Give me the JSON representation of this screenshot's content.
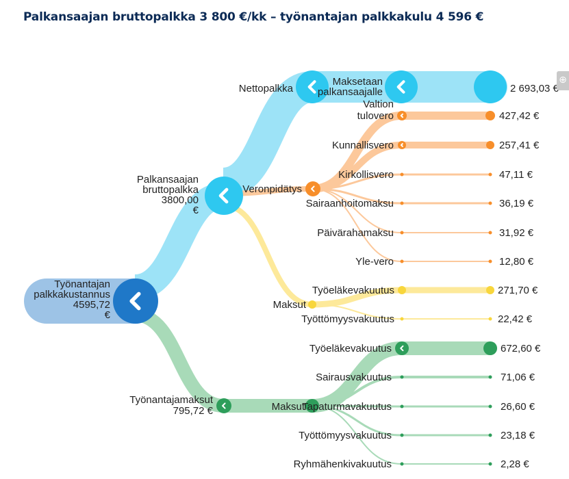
{
  "title": "Palkansaajan bruttopalkka 3 800 €/kk – työnantajan palkkakulu 4 596 €",
  "colors": {
    "employer_band": "#9dc3e6",
    "employer_node": "#1f78c8",
    "net_band": "#9de3f7",
    "net_node": "#2ec8f0",
    "tax_band": "#fcc89b",
    "tax_node": "#f78e2a",
    "employee_contrib_band": "#fde99a",
    "employee_contrib_node": "#f8d63c",
    "employer_contrib_band": "#a8dab8",
    "employer_contrib_node": "#2e9e5b"
  },
  "icons": {
    "node_collapse": "chevron-left-icon",
    "zoom": "zoom-in-icon"
  },
  "nodes": {
    "root": {
      "label_lines": [
        "Työnantajan",
        "palkkakustannus",
        "4595,72",
        "€"
      ]
    },
    "gross": {
      "label_lines": [
        "Palkansaajan",
        "bruttopalkka",
        "3800,00",
        "€"
      ]
    },
    "net": {
      "label": "Nettopalkka"
    },
    "paid_out": {
      "label_lines": [
        "Maksetaan",
        "palkansaajalle"
      ],
      "value": "2 693,03 €"
    },
    "withholding": {
      "label": "Veronpidätys"
    },
    "employee_contrib": {
      "label": "Maksut"
    },
    "employer_payments": {
      "label_lines": [
        "Työnantajamaksut",
        "795,72 €"
      ]
    },
    "employer_contrib": {
      "label": "Maksut"
    }
  },
  "tax_items": [
    {
      "label_lines": [
        "Valtion",
        "tulovero"
      ],
      "value": "427,42 €"
    },
    {
      "label_lines": [
        "Kunnallisvero"
      ],
      "value": "257,41 €"
    },
    {
      "label_lines": [
        "Kirkollisvero"
      ],
      "value": "47,11 €"
    },
    {
      "label_lines": [
        "Sairaanhoitomaksu"
      ],
      "value": "36,19 €"
    },
    {
      "label_lines": [
        "Päivärahamaksu"
      ],
      "value": "31,92 €"
    },
    {
      "label_lines": [
        "Yle-vero"
      ],
      "value": "12,80 €"
    }
  ],
  "employee_contrib_items": [
    {
      "label_lines": [
        "Työeläkevakuutus"
      ],
      "value": "271,70 €"
    },
    {
      "label_lines": [
        "Työttömyysvakuutus"
      ],
      "value": "22,42 €"
    }
  ],
  "employer_contrib_items": [
    {
      "label_lines": [
        "Työeläkevakuutus"
      ],
      "value": "672,60 €"
    },
    {
      "label_lines": [
        "Sairausvakuutus"
      ],
      "value": "71,06 €"
    },
    {
      "label_lines": [
        "Tapaturmavakuutus"
      ],
      "value": "26,60 €"
    },
    {
      "label_lines": [
        "Työttömyysvakuutus"
      ],
      "value": "23,18 €"
    },
    {
      "label_lines": [
        "Ryhmähenkivakuutus"
      ],
      "value": "2,28 €"
    }
  ],
  "zoom_button": {
    "glyph": "⊕"
  }
}
